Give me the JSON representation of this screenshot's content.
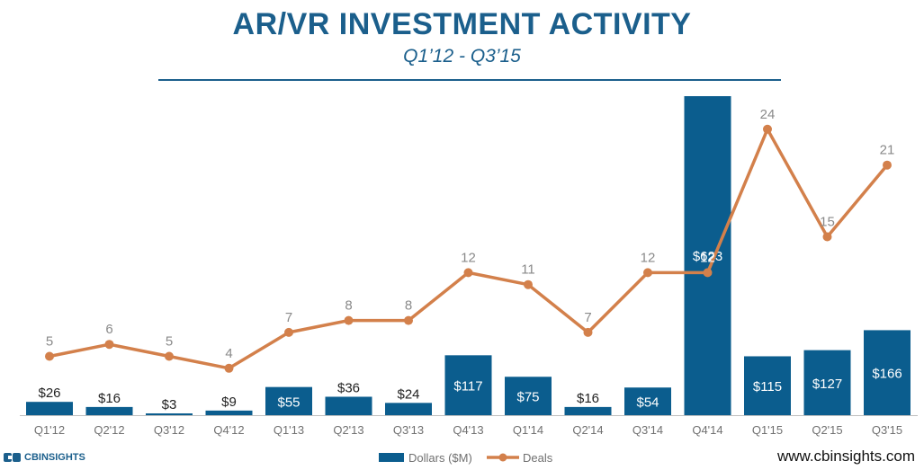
{
  "title": "AR/VR INVESTMENT ACTIVITY",
  "subtitle": "Q1’12 - Q3’15",
  "footer": {
    "logo_text": "CBINSIGHTS",
    "website": "www.cbinsights.com"
  },
  "colors": {
    "bar": "#0b5d8e",
    "line": "#d3804b",
    "title": "#1b5f8c",
    "deal_label": "#8a8a8a",
    "axis_label": "#707070"
  },
  "chart_data": {
    "type": "bar+line",
    "title": "AR/VR INVESTMENT ACTIVITY",
    "subtitle": "Q1’12 - Q3’15",
    "categories": [
      "Q1'12",
      "Q2'12",
      "Q3'12",
      "Q4'12",
      "Q1'13",
      "Q2'13",
      "Q3'13",
      "Q4'13",
      "Q1'14",
      "Q2'14",
      "Q3'14",
      "Q4'14",
      "Q1'15",
      "Q2'15",
      "Q3'15"
    ],
    "series": [
      {
        "name": "Dollars ($M)",
        "type": "bar",
        "values": [
          26,
          16,
          3,
          9,
          55,
          36,
          24,
          117,
          75,
          16,
          54,
          623,
          115,
          127,
          166
        ],
        "labels": [
          "$26",
          "$16",
          "$3",
          "$9",
          "$55",
          "$36",
          "$24",
          "$117",
          "$75",
          "$16",
          "$54",
          "$623",
          "$115",
          "$127",
          "$166"
        ]
      },
      {
        "name": "Deals",
        "type": "line",
        "values": [
          5,
          6,
          5,
          4,
          7,
          8,
          8,
          12,
          11,
          7,
          12,
          12,
          24,
          15,
          21
        ],
        "labels": [
          "5",
          "6",
          "5",
          "4",
          "7",
          "8",
          "8",
          "12",
          "11",
          "7",
          "12",
          "12",
          "24",
          "15",
          "21"
        ]
      }
    ],
    "ylim_dollars": [
      0,
      623
    ],
    "ylim_deals": [
      0,
      30
    ],
    "legend": "bottom-center",
    "grid": false
  }
}
